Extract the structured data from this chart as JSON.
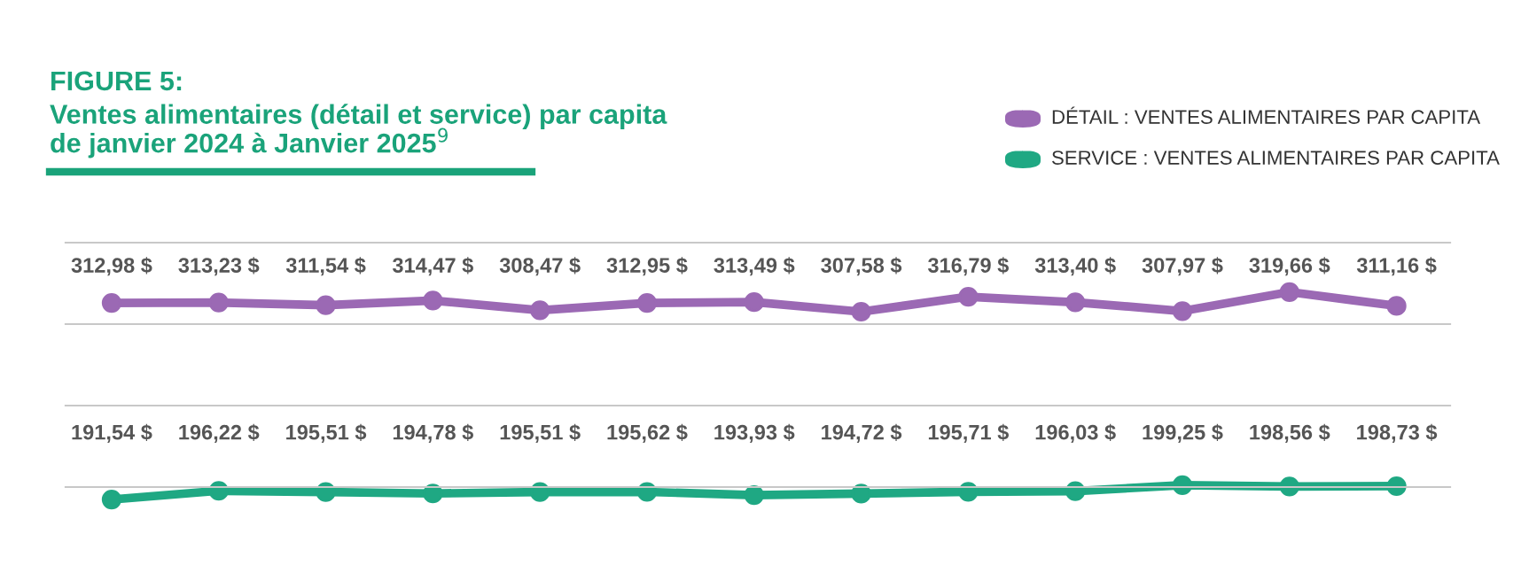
{
  "chart_data": [
    {
      "type": "line",
      "title": "FIGURE 5:",
      "subtitle": "Ventes alimentaires (détail et service) par capita\nde janvier 2024 à Janvier 2025$^{9}$",
      "categories": [
        null,
        null,
        null,
        null,
        null,
        null,
        null,
        null,
        null,
        null,
        null,
        null,
        null
      ],
      "series": [
        {
          "name": "DÉTAIL : VENTES ALIMENTAIRES PAR CAPITA",
          "color": "#9b69b4",
          "values": [
            312.98,
            313.23,
            311.54,
            314.47,
            308.47,
            312.95,
            313.49,
            307.58,
            316.79,
            313.4,
            307.97,
            319.66,
            311.16
          ],
          "value_labels": [
            "312,98 $",
            "313,23 $",
            "311,54 $",
            "314,47 $",
            "308,47 $",
            "312,95 $",
            "313,49 $",
            "307,58 $",
            "316,79 $",
            "313,40 $",
            "307,97 $",
            "319,66 $",
            "311,16 $"
          ]
        }
      ],
      "marker": "circle",
      "line_style": "solid",
      "legend": "top right"
    },
    {
      "type": "line",
      "categories": [
        null,
        null,
        null,
        null,
        null,
        null,
        null,
        null,
        null,
        null,
        null,
        null,
        null
      ],
      "series": [
        {
          "name": "SERVICE : VENTES ALIMENTAIRES PAR CAPITA",
          "color": "#1fa883",
          "values": [
            191.54,
            196.22,
            195.51,
            194.78,
            195.51,
            195.62,
            193.93,
            194.72,
            195.71,
            196.03,
            199.25,
            198.56,
            198.73
          ],
          "value_labels": [
            "191,54 $",
            "196,22 $",
            "195,51 $",
            "194,78 $",
            "195,51 $",
            "195,62 $",
            "193,93 $",
            "194,72 $",
            "195,71 $",
            "196,03 $",
            "199,25 $",
            "198,56 $",
            "198,73 $"
          ]
        }
      ],
      "marker": "circle",
      "line_style": "solid",
      "legend": "top right"
    }
  ]
}
